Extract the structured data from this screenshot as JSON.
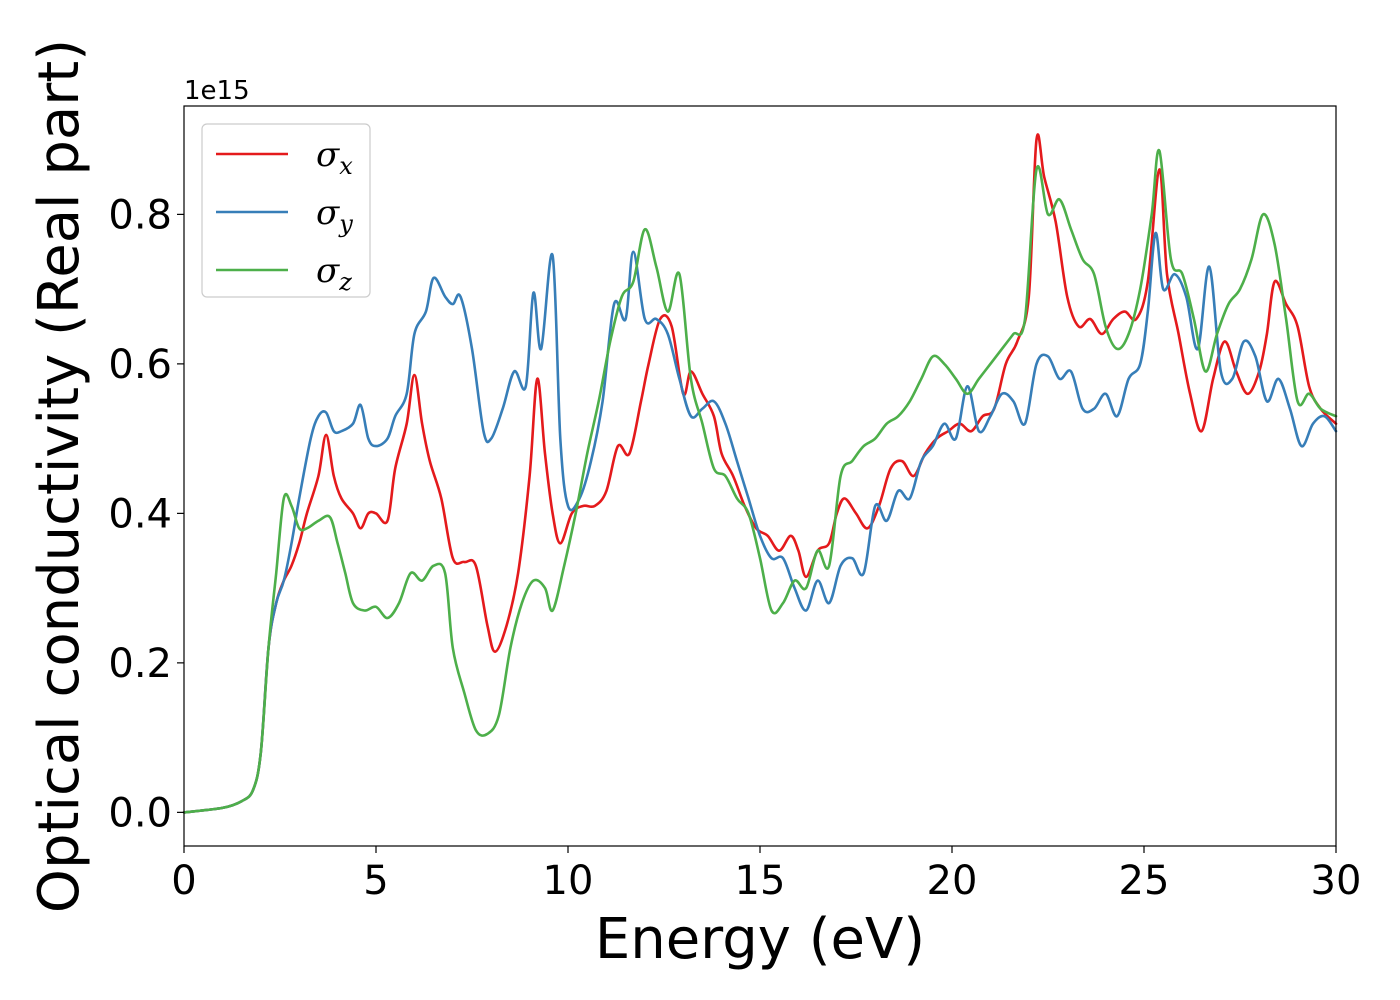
{
  "chart_data": {
    "type": "line",
    "title": "",
    "xlabel": "Energy (eV)",
    "ylabel": "Optical conductivity (Real part)",
    "y_offset_label": "1e15",
    "xlim": [
      0,
      30
    ],
    "ylim": [
      -0.045,
      0.945
    ],
    "xticks": [
      0,
      5,
      10,
      15,
      20,
      25,
      30
    ],
    "xtick_labels": [
      "0",
      "5",
      "10",
      "15",
      "20",
      "25",
      "30"
    ],
    "yticks": [
      0.0,
      0.2,
      0.4,
      0.6,
      0.8
    ],
    "ytick_labels": [
      "0.0",
      "0.2",
      "0.4",
      "0.6",
      "0.8"
    ],
    "grid": false,
    "legend_position": "top-left",
    "series": [
      {
        "name": "σx",
        "symbol": "σ",
        "subscript": "x",
        "color": "#e41a1c",
        "x": [
          0,
          1,
          1.5,
          1.8,
          2.0,
          2.2,
          2.4,
          2.6,
          2.8,
          3.0,
          3.2,
          3.5,
          3.7,
          3.9,
          4.1,
          4.4,
          4.6,
          4.8,
          5.0,
          5.3,
          5.5,
          5.8,
          6.0,
          6.2,
          6.4,
          6.7,
          7.0,
          7.3,
          7.6,
          7.9,
          8.1,
          8.4,
          8.7,
          9.0,
          9.2,
          9.4,
          9.6,
          9.8,
          10.1,
          10.4,
          10.7,
          11.0,
          11.3,
          11.6,
          11.9,
          12.1,
          12.4,
          12.7,
          13.0,
          13.2,
          13.5,
          13.8,
          14.0,
          14.3,
          14.6,
          14.9,
          15.2,
          15.5,
          15.8,
          16.0,
          16.2,
          16.5,
          16.8,
          17.0,
          17.2,
          17.5,
          17.8,
          18.1,
          18.4,
          18.7,
          19.0,
          19.3,
          19.6,
          19.9,
          20.2,
          20.5,
          20.8,
          21.1,
          21.4,
          21.7,
          22.0,
          22.2,
          22.4,
          22.7,
          23.0,
          23.3,
          23.6,
          23.9,
          24.2,
          24.5,
          24.8,
          25.1,
          25.4,
          25.6,
          25.9,
          26.2,
          26.5,
          26.8,
          27.1,
          27.4,
          27.7,
          28.0,
          28.2,
          28.4,
          28.7,
          29.0,
          29.3,
          29.6,
          30.0
        ],
        "y": [
          0.0,
          0.006,
          0.015,
          0.03,
          0.08,
          0.22,
          0.28,
          0.31,
          0.33,
          0.36,
          0.4,
          0.45,
          0.505,
          0.45,
          0.42,
          0.4,
          0.38,
          0.4,
          0.4,
          0.39,
          0.46,
          0.52,
          0.585,
          0.52,
          0.47,
          0.42,
          0.34,
          0.335,
          0.33,
          0.25,
          0.215,
          0.25,
          0.32,
          0.45,
          0.58,
          0.48,
          0.4,
          0.36,
          0.4,
          0.41,
          0.41,
          0.43,
          0.49,
          0.48,
          0.55,
          0.6,
          0.66,
          0.65,
          0.56,
          0.59,
          0.56,
          0.53,
          0.48,
          0.45,
          0.41,
          0.38,
          0.37,
          0.35,
          0.37,
          0.35,
          0.315,
          0.35,
          0.36,
          0.4,
          0.42,
          0.4,
          0.38,
          0.41,
          0.46,
          0.47,
          0.45,
          0.48,
          0.5,
          0.51,
          0.52,
          0.51,
          0.53,
          0.54,
          0.6,
          0.63,
          0.69,
          0.9,
          0.85,
          0.79,
          0.69,
          0.65,
          0.66,
          0.64,
          0.66,
          0.67,
          0.66,
          0.71,
          0.86,
          0.72,
          0.64,
          0.56,
          0.51,
          0.58,
          0.63,
          0.59,
          0.56,
          0.59,
          0.64,
          0.71,
          0.68,
          0.65,
          0.57,
          0.54,
          0.52
        ],
        "annotation": ""
      },
      {
        "name": "σy",
        "symbol": "σ",
        "subscript": "y",
        "color": "#377eb8",
        "x": [
          0,
          1,
          1.5,
          1.8,
          2.0,
          2.2,
          2.4,
          2.6,
          2.8,
          3.0,
          3.3,
          3.5,
          3.7,
          3.9,
          4.1,
          4.4,
          4.6,
          4.8,
          5.0,
          5.3,
          5.5,
          5.8,
          6.0,
          6.3,
          6.5,
          6.8,
          7.0,
          7.2,
          7.5,
          7.8,
          8.0,
          8.3,
          8.6,
          8.9,
          9.1,
          9.3,
          9.6,
          9.8,
          10.0,
          10.3,
          10.6,
          10.9,
          11.2,
          11.5,
          11.7,
          12.0,
          12.3,
          12.6,
          12.9,
          13.2,
          13.5,
          13.8,
          14.1,
          14.4,
          14.7,
          15.0,
          15.3,
          15.6,
          15.9,
          16.2,
          16.5,
          16.8,
          17.1,
          17.4,
          17.7,
          18.0,
          18.3,
          18.6,
          18.9,
          19.2,
          19.5,
          19.8,
          20.1,
          20.4,
          20.7,
          21.0,
          21.3,
          21.6,
          21.9,
          22.2,
          22.5,
          22.8,
          23.1,
          23.4,
          23.7,
          24.0,
          24.3,
          24.6,
          24.9,
          25.1,
          25.3,
          25.5,
          25.8,
          26.1,
          26.4,
          26.7,
          27.0,
          27.3,
          27.6,
          27.9,
          28.2,
          28.5,
          28.8,
          29.1,
          29.4,
          29.7,
          30.0
        ],
        "y": [
          0.0,
          0.006,
          0.015,
          0.03,
          0.08,
          0.22,
          0.28,
          0.31,
          0.36,
          0.42,
          0.5,
          0.53,
          0.535,
          0.51,
          0.51,
          0.52,
          0.545,
          0.5,
          0.49,
          0.5,
          0.53,
          0.56,
          0.64,
          0.67,
          0.715,
          0.69,
          0.68,
          0.69,
          0.62,
          0.51,
          0.5,
          0.54,
          0.59,
          0.57,
          0.695,
          0.62,
          0.745,
          0.5,
          0.41,
          0.42,
          0.47,
          0.55,
          0.68,
          0.66,
          0.75,
          0.66,
          0.66,
          0.64,
          0.58,
          0.53,
          0.54,
          0.55,
          0.52,
          0.47,
          0.42,
          0.37,
          0.34,
          0.34,
          0.3,
          0.27,
          0.31,
          0.28,
          0.33,
          0.34,
          0.32,
          0.41,
          0.39,
          0.43,
          0.42,
          0.47,
          0.49,
          0.52,
          0.5,
          0.57,
          0.51,
          0.53,
          0.56,
          0.55,
          0.52,
          0.6,
          0.61,
          0.58,
          0.59,
          0.54,
          0.54,
          0.56,
          0.53,
          0.58,
          0.6,
          0.67,
          0.775,
          0.7,
          0.72,
          0.69,
          0.62,
          0.73,
          0.59,
          0.58,
          0.63,
          0.61,
          0.55,
          0.58,
          0.54,
          0.49,
          0.52,
          0.53,
          0.51
        ],
        "annotation": ""
      },
      {
        "name": "σz",
        "symbol": "σ",
        "subscript": "z",
        "color": "#4daf4a",
        "x": [
          0,
          1,
          1.5,
          1.8,
          2.0,
          2.2,
          2.4,
          2.6,
          2.8,
          3.0,
          3.2,
          3.5,
          3.8,
          4.0,
          4.2,
          4.4,
          4.7,
          5.0,
          5.3,
          5.6,
          5.9,
          6.2,
          6.5,
          6.8,
          7.0,
          7.3,
          7.6,
          7.9,
          8.2,
          8.5,
          8.8,
          9.1,
          9.4,
          9.6,
          9.9,
          10.2,
          10.5,
          10.8,
          11.1,
          11.4,
          11.7,
          12.0,
          12.3,
          12.6,
          12.9,
          13.2,
          13.5,
          13.8,
          14.1,
          14.4,
          14.7,
          15.0,
          15.3,
          15.6,
          15.9,
          16.2,
          16.5,
          16.8,
          17.1,
          17.4,
          17.7,
          18.0,
          18.3,
          18.6,
          18.9,
          19.2,
          19.5,
          19.8,
          20.1,
          20.4,
          20.7,
          21.0,
          21.3,
          21.6,
          21.9,
          22.2,
          22.5,
          22.8,
          23.1,
          23.4,
          23.7,
          24.0,
          24.3,
          24.6,
          24.9,
          25.2,
          25.4,
          25.7,
          26.0,
          26.3,
          26.6,
          26.9,
          27.2,
          27.5,
          27.8,
          28.1,
          28.4,
          28.7,
          29.0,
          29.3,
          29.6,
          30.0
        ],
        "y": [
          0.0,
          0.006,
          0.015,
          0.03,
          0.08,
          0.22,
          0.32,
          0.42,
          0.41,
          0.38,
          0.38,
          0.39,
          0.395,
          0.36,
          0.32,
          0.28,
          0.27,
          0.275,
          0.26,
          0.28,
          0.32,
          0.31,
          0.33,
          0.32,
          0.22,
          0.16,
          0.11,
          0.105,
          0.13,
          0.22,
          0.28,
          0.31,
          0.3,
          0.27,
          0.33,
          0.4,
          0.48,
          0.55,
          0.63,
          0.69,
          0.71,
          0.78,
          0.73,
          0.67,
          0.72,
          0.58,
          0.52,
          0.46,
          0.45,
          0.42,
          0.4,
          0.34,
          0.27,
          0.28,
          0.31,
          0.3,
          0.35,
          0.33,
          0.45,
          0.47,
          0.49,
          0.5,
          0.52,
          0.53,
          0.55,
          0.58,
          0.61,
          0.6,
          0.58,
          0.56,
          0.58,
          0.6,
          0.62,
          0.64,
          0.66,
          0.86,
          0.8,
          0.82,
          0.78,
          0.74,
          0.72,
          0.65,
          0.62,
          0.64,
          0.7,
          0.8,
          0.885,
          0.74,
          0.72,
          0.66,
          0.59,
          0.64,
          0.68,
          0.7,
          0.74,
          0.8,
          0.76,
          0.66,
          0.55,
          0.56,
          0.54,
          0.53
        ],
        "annotation": ""
      }
    ]
  }
}
